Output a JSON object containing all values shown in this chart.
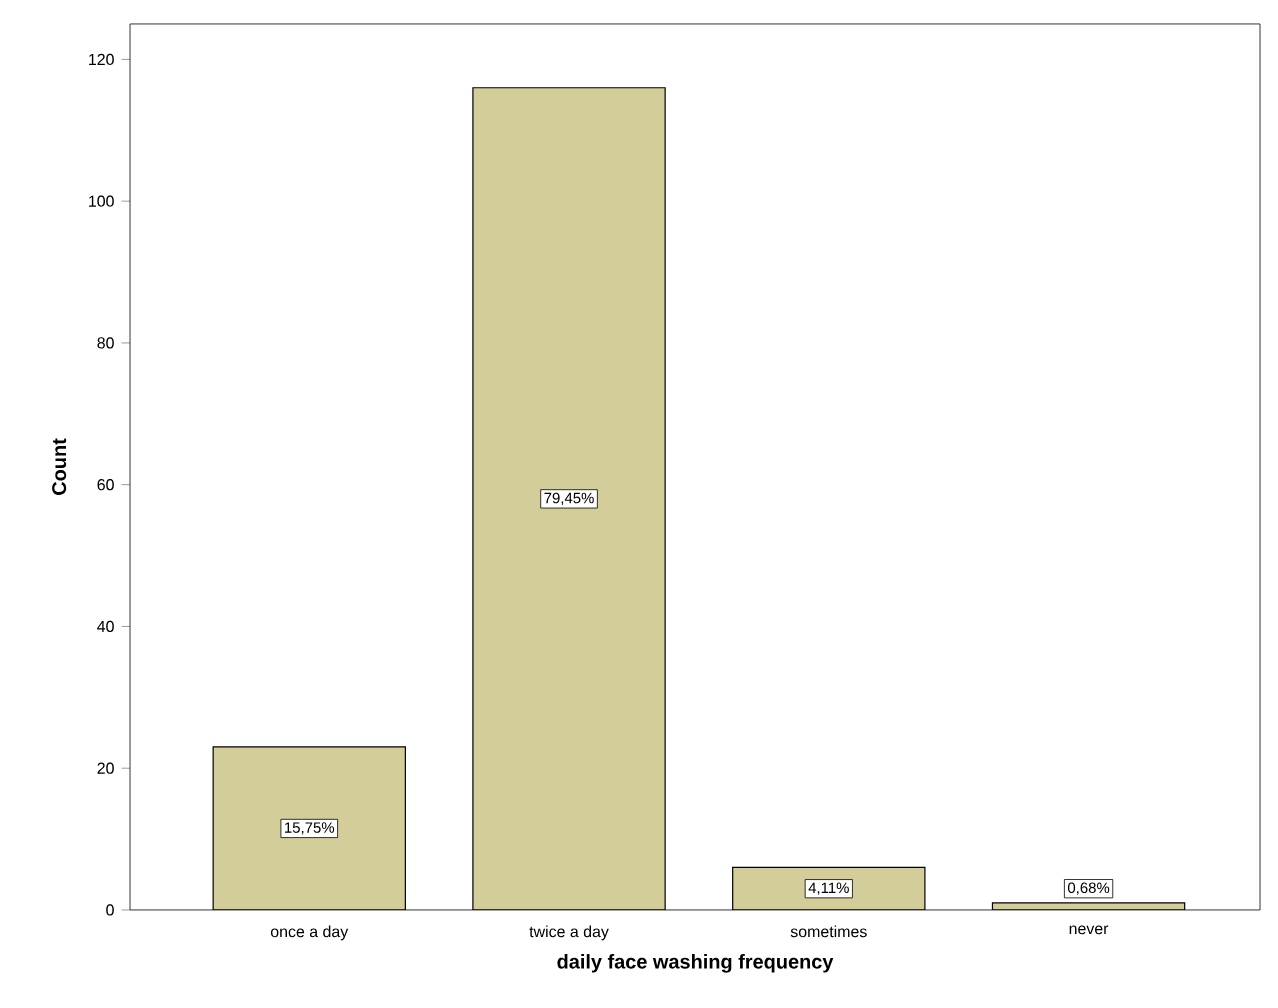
{
  "chart_data": {
    "type": "bar",
    "xlabel": "daily face washing frequency",
    "ylabel": "Count",
    "categories": [
      "once a day",
      "twice a day",
      "sometimes",
      "never"
    ],
    "values": [
      23,
      116,
      6,
      1
    ],
    "annotations": [
      "15,75%",
      "79,45%",
      "4,11%",
      "0,68%"
    ],
    "color": "#d3ce99",
    "ylim": [
      0,
      125
    ],
    "yticks": [
      0,
      20,
      40,
      60,
      80,
      100,
      120
    ],
    "grid": false
  }
}
